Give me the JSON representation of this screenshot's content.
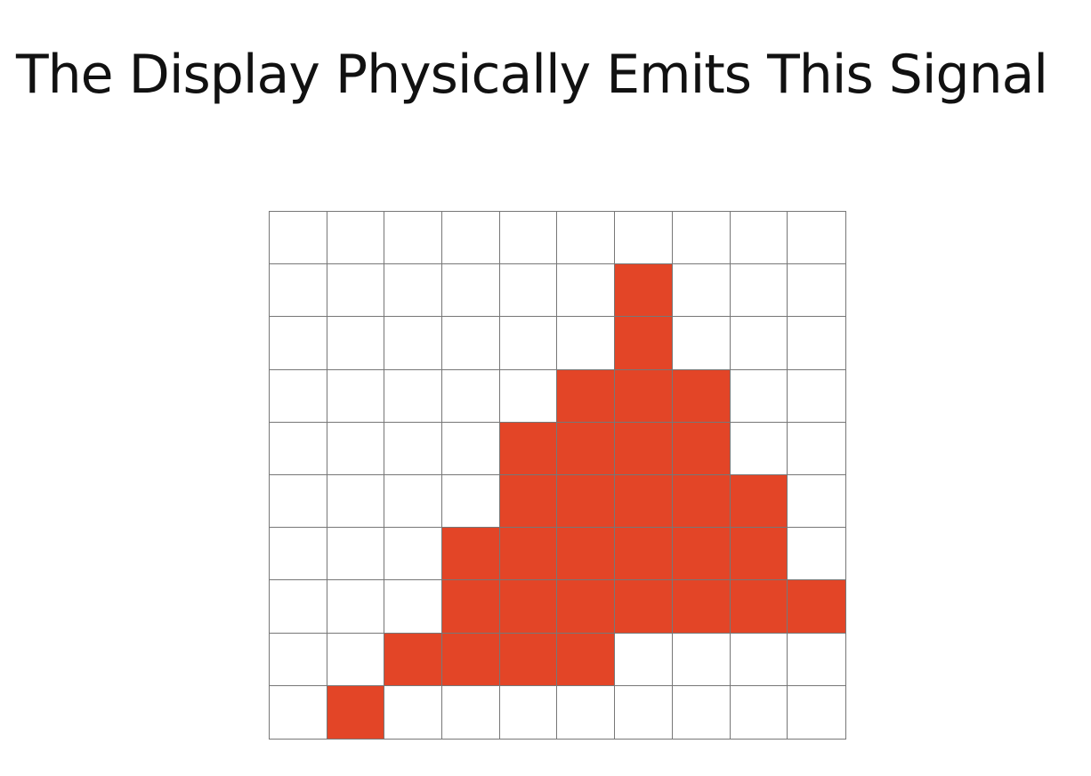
{
  "title": "The Display Physically Emits This Signal",
  "colors": {
    "lit": "#e34527",
    "unlit": "#ffffff",
    "gridline": "#777777"
  },
  "pixel_grid": {
    "rows": 10,
    "cols": 10,
    "lit_cells": [
      [
        0,
        0,
        0,
        0,
        0,
        0,
        0,
        0,
        0,
        0
      ],
      [
        0,
        0,
        0,
        0,
        0,
        0,
        1,
        0,
        0,
        0
      ],
      [
        0,
        0,
        0,
        0,
        0,
        0,
        1,
        0,
        0,
        0
      ],
      [
        0,
        0,
        0,
        0,
        0,
        1,
        1,
        1,
        0,
        0
      ],
      [
        0,
        0,
        0,
        0,
        1,
        1,
        1,
        1,
        0,
        0
      ],
      [
        0,
        0,
        0,
        0,
        1,
        1,
        1,
        1,
        1,
        0
      ],
      [
        0,
        0,
        0,
        1,
        1,
        1,
        1,
        1,
        1,
        0
      ],
      [
        0,
        0,
        0,
        1,
        1,
        1,
        1,
        1,
        1,
        1
      ],
      [
        0,
        0,
        1,
        1,
        1,
        1,
        0,
        0,
        0,
        0
      ],
      [
        0,
        1,
        0,
        0,
        0,
        0,
        0,
        0,
        0,
        0
      ]
    ]
  }
}
